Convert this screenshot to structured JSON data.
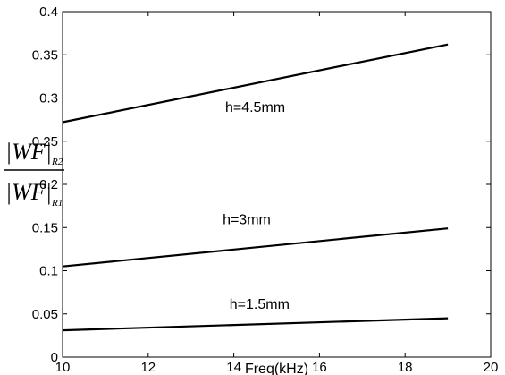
{
  "chart_data": {
    "type": "line",
    "title": "",
    "xlabel": "Freq(kHz)",
    "ylabel": {
      "numerator": "|WF|",
      "numerator_sub": "R2",
      "denominator": "|WF|",
      "denominator_sub": "R1"
    },
    "xlim": [
      10,
      20
    ],
    "ylim": [
      0,
      0.4
    ],
    "xticks": [
      "10",
      "12",
      "14",
      "16",
      "18",
      "20"
    ],
    "yticks": [
      "0",
      "0.05",
      "0.1",
      "0.15",
      "0.2",
      "0.25",
      "0.3",
      "0.35",
      "0.4"
    ],
    "grid": false,
    "series": [
      {
        "name": "h=4.5mm",
        "x": [
          10,
          19
        ],
        "y": [
          0.272,
          0.362
        ]
      },
      {
        "name": "h=3mm",
        "x": [
          10,
          19
        ],
        "y": [
          0.105,
          0.149
        ]
      },
      {
        "name": "h=1.5mm",
        "x": [
          10,
          19
        ],
        "y": [
          0.031,
          0.045
        ]
      }
    ],
    "annotations": [
      {
        "text": "h=4.5mm",
        "x": 14.5,
        "y": 0.284
      },
      {
        "text": "h=3mm",
        "x": 14.3,
        "y": 0.154
      },
      {
        "text": "h=1.5mm",
        "x": 14.6,
        "y": 0.056
      }
    ],
    "colors": {
      "line": "#000000",
      "axis": "#000000"
    }
  }
}
